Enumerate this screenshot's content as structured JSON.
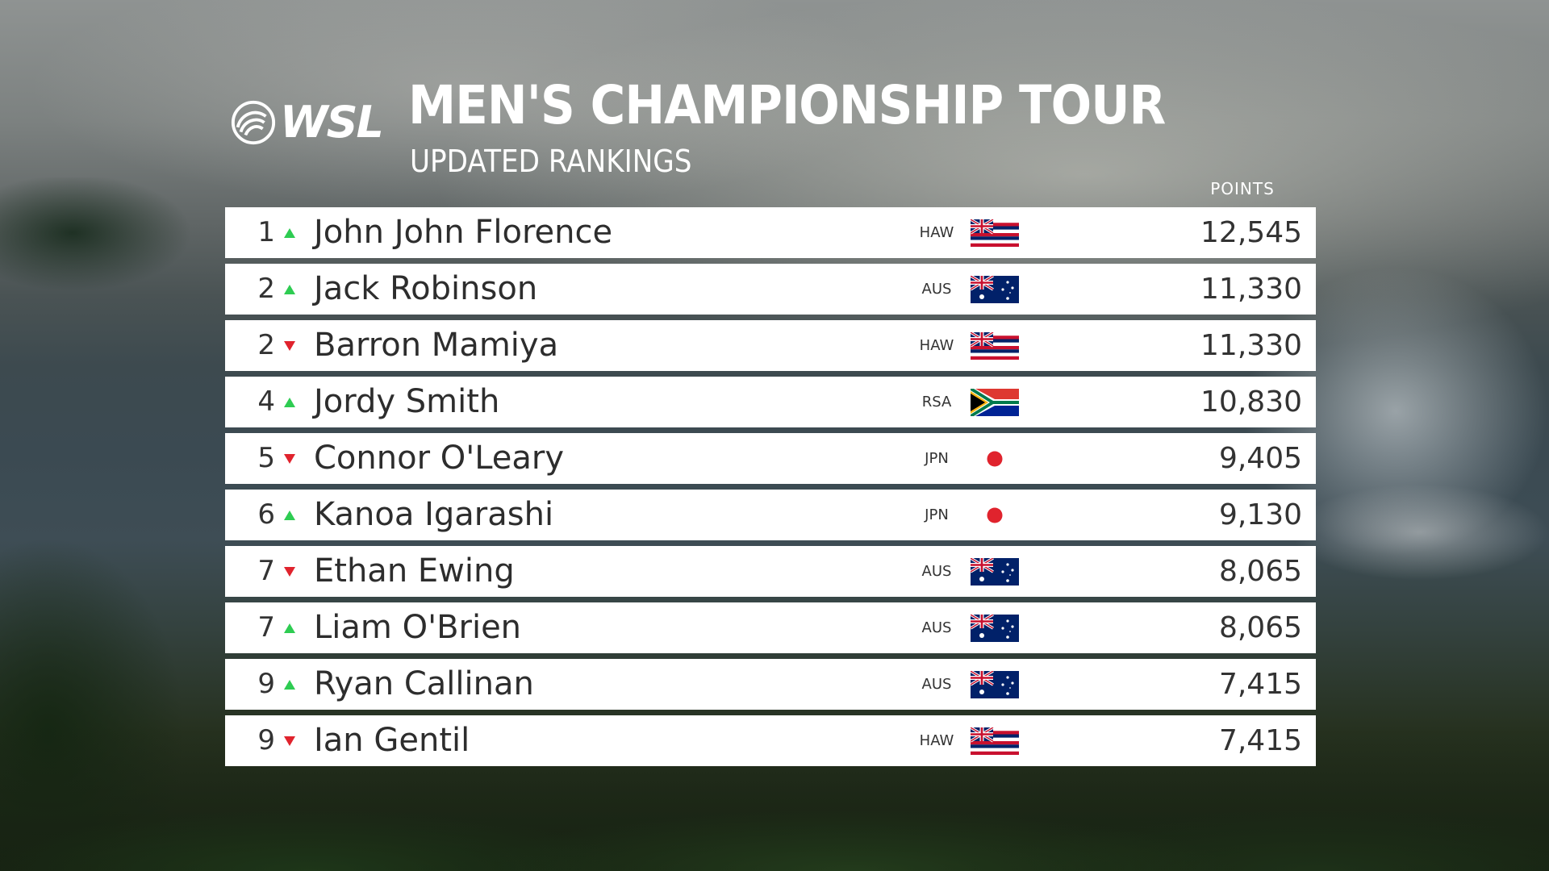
{
  "header": {
    "logo_text": "WSL",
    "title": "MEN'S CHAMPIONSHIP TOUR",
    "subtitle": "UPDATED RANKINGS",
    "points_label": "POINTS"
  },
  "colors": {
    "up": "#2ecc52",
    "down": "#e0232d"
  },
  "rankings": [
    {
      "rank": "1",
      "move": "up",
      "name": "John John Florence",
      "country": "HAW",
      "flag": "hawaii-flag-icon",
      "points": "12,545"
    },
    {
      "rank": "2",
      "move": "up",
      "name": "Jack Robinson",
      "country": "AUS",
      "flag": "australia-flag-icon",
      "points": "11,330"
    },
    {
      "rank": "2",
      "move": "down",
      "name": "Barron Mamiya",
      "country": "HAW",
      "flag": "hawaii-flag-icon",
      "points": "11,330"
    },
    {
      "rank": "4",
      "move": "up",
      "name": "Jordy Smith",
      "country": "RSA",
      "flag": "south-africa-flag-icon",
      "points": "10,830"
    },
    {
      "rank": "5",
      "move": "down",
      "name": "Connor O'Leary",
      "country": "JPN",
      "flag": "japan-flag-icon",
      "points": "9,405"
    },
    {
      "rank": "6",
      "move": "up",
      "name": "Kanoa Igarashi",
      "country": "JPN",
      "flag": "japan-flag-icon",
      "points": "9,130"
    },
    {
      "rank": "7",
      "move": "down",
      "name": "Ethan Ewing",
      "country": "AUS",
      "flag": "australia-flag-icon",
      "points": "8,065"
    },
    {
      "rank": "7",
      "move": "up",
      "name": "Liam O'Brien",
      "country": "AUS",
      "flag": "australia-flag-icon",
      "points": "8,065"
    },
    {
      "rank": "9",
      "move": "up",
      "name": "Ryan Callinan",
      "country": "AUS",
      "flag": "australia-flag-icon",
      "points": "7,415"
    },
    {
      "rank": "9",
      "move": "down",
      "name": "Ian Gentil",
      "country": "HAW",
      "flag": "hawaii-flag-icon",
      "points": "7,415"
    }
  ]
}
